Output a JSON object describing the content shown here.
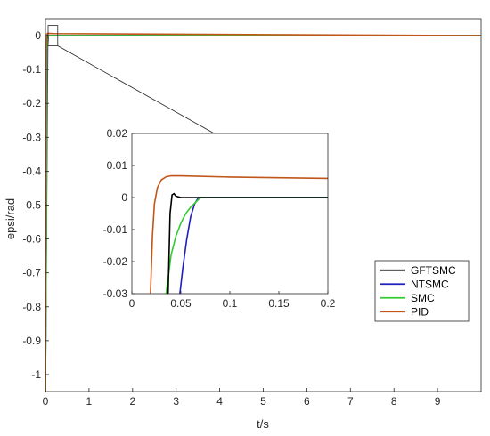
{
  "chart_data": [
    {
      "type": "line",
      "xlabel": "t/s",
      "ylabel": "epsi/rad",
      "xlim": [
        0,
        10
      ],
      "ylim": [
        -1.05,
        0.05
      ],
      "x_ticks": [
        0,
        1,
        2,
        3,
        4,
        5,
        6,
        7,
        8,
        9
      ],
      "y_ticks": [
        0,
        -0.1,
        -0.2,
        -0.3,
        -0.4,
        -0.5,
        -0.6,
        -0.7,
        -0.8,
        -0.9,
        -1
      ],
      "grid": false,
      "legend": "bottom-right",
      "series": [
        {
          "name": "GFTSMC",
          "color": "#000000",
          "x": [
            0,
            0.02,
            0.038,
            0.042,
            0.05,
            10
          ],
          "y": [
            -1.05,
            -0.5,
            -0.02,
            0.0012,
            0,
            0
          ]
        },
        {
          "name": "NTSMC",
          "color": "#1f1fbf",
          "x": [
            0,
            0.02,
            0.05,
            0.065,
            0.07,
            10
          ],
          "y": [
            -1.05,
            -0.6,
            -0.03,
            -0.002,
            0,
            0
          ]
        },
        {
          "name": "SMC",
          "color": "#33cc33",
          "x": [
            0,
            0.02,
            0.035,
            0.05,
            0.07,
            10
          ],
          "y": [
            -1.05,
            -0.6,
            -0.03,
            -0.01,
            0,
            0
          ]
        },
        {
          "name": "PID",
          "color": "#c0561a",
          "x": [
            0,
            0.02,
            0.03,
            0.05,
            0.2,
            10
          ],
          "y": [
            -1.05,
            -0.03,
            0.004,
            0.0068,
            0.006,
            0.0
          ]
        }
      ]
    },
    {
      "type": "line",
      "xlim": [
        0,
        0.2
      ],
      "ylim": [
        -0.03,
        0.02
      ],
      "x_ticks": [
        0,
        0.05,
        0.1,
        0.15,
        0.2
      ],
      "x_tick_labels": [
        "0",
        "0.05",
        "0.1",
        "0.15",
        "0.2"
      ],
      "y_ticks": [
        0.02,
        0.01,
        0,
        -0.01,
        -0.02,
        -0.03
      ],
      "y_tick_labels": [
        "0.02",
        "0.01",
        "0",
        "-0.01",
        "-0.02",
        "-0.03"
      ],
      "series": [
        {
          "name": "GFTSMC",
          "color": "#000000",
          "x": [
            0.037,
            0.039,
            0.041,
            0.043,
            0.045,
            0.05,
            0.07,
            0.2
          ],
          "y": [
            -0.03,
            -0.005,
            0.0008,
            0.0012,
            0.0004,
            0.0,
            0.0,
            0.0
          ]
        },
        {
          "name": "NTSMC",
          "color": "#1f1fbf",
          "x": [
            0.049,
            0.052,
            0.056,
            0.06,
            0.064,
            0.068,
            0.2
          ],
          "y": [
            -0.03,
            -0.022,
            -0.013,
            -0.006,
            -0.002,
            0.0,
            0.0
          ]
        },
        {
          "name": "SMC",
          "color": "#33cc33",
          "x": [
            0.035,
            0.04,
            0.045,
            0.05,
            0.055,
            0.06,
            0.065,
            0.07,
            0.2
          ],
          "y": [
            -0.03,
            -0.018,
            -0.012,
            -0.008,
            -0.005,
            -0.003,
            -0.0015,
            0.0,
            0.0
          ]
        },
        {
          "name": "PID",
          "color": "#c0561a",
          "x": [
            0.019,
            0.021,
            0.023,
            0.026,
            0.03,
            0.035,
            0.04,
            0.05,
            0.1,
            0.2
          ],
          "y": [
            -0.03,
            -0.012,
            -0.002,
            0.003,
            0.0055,
            0.0065,
            0.0068,
            0.0068,
            0.0064,
            0.006
          ]
        }
      ]
    }
  ]
}
